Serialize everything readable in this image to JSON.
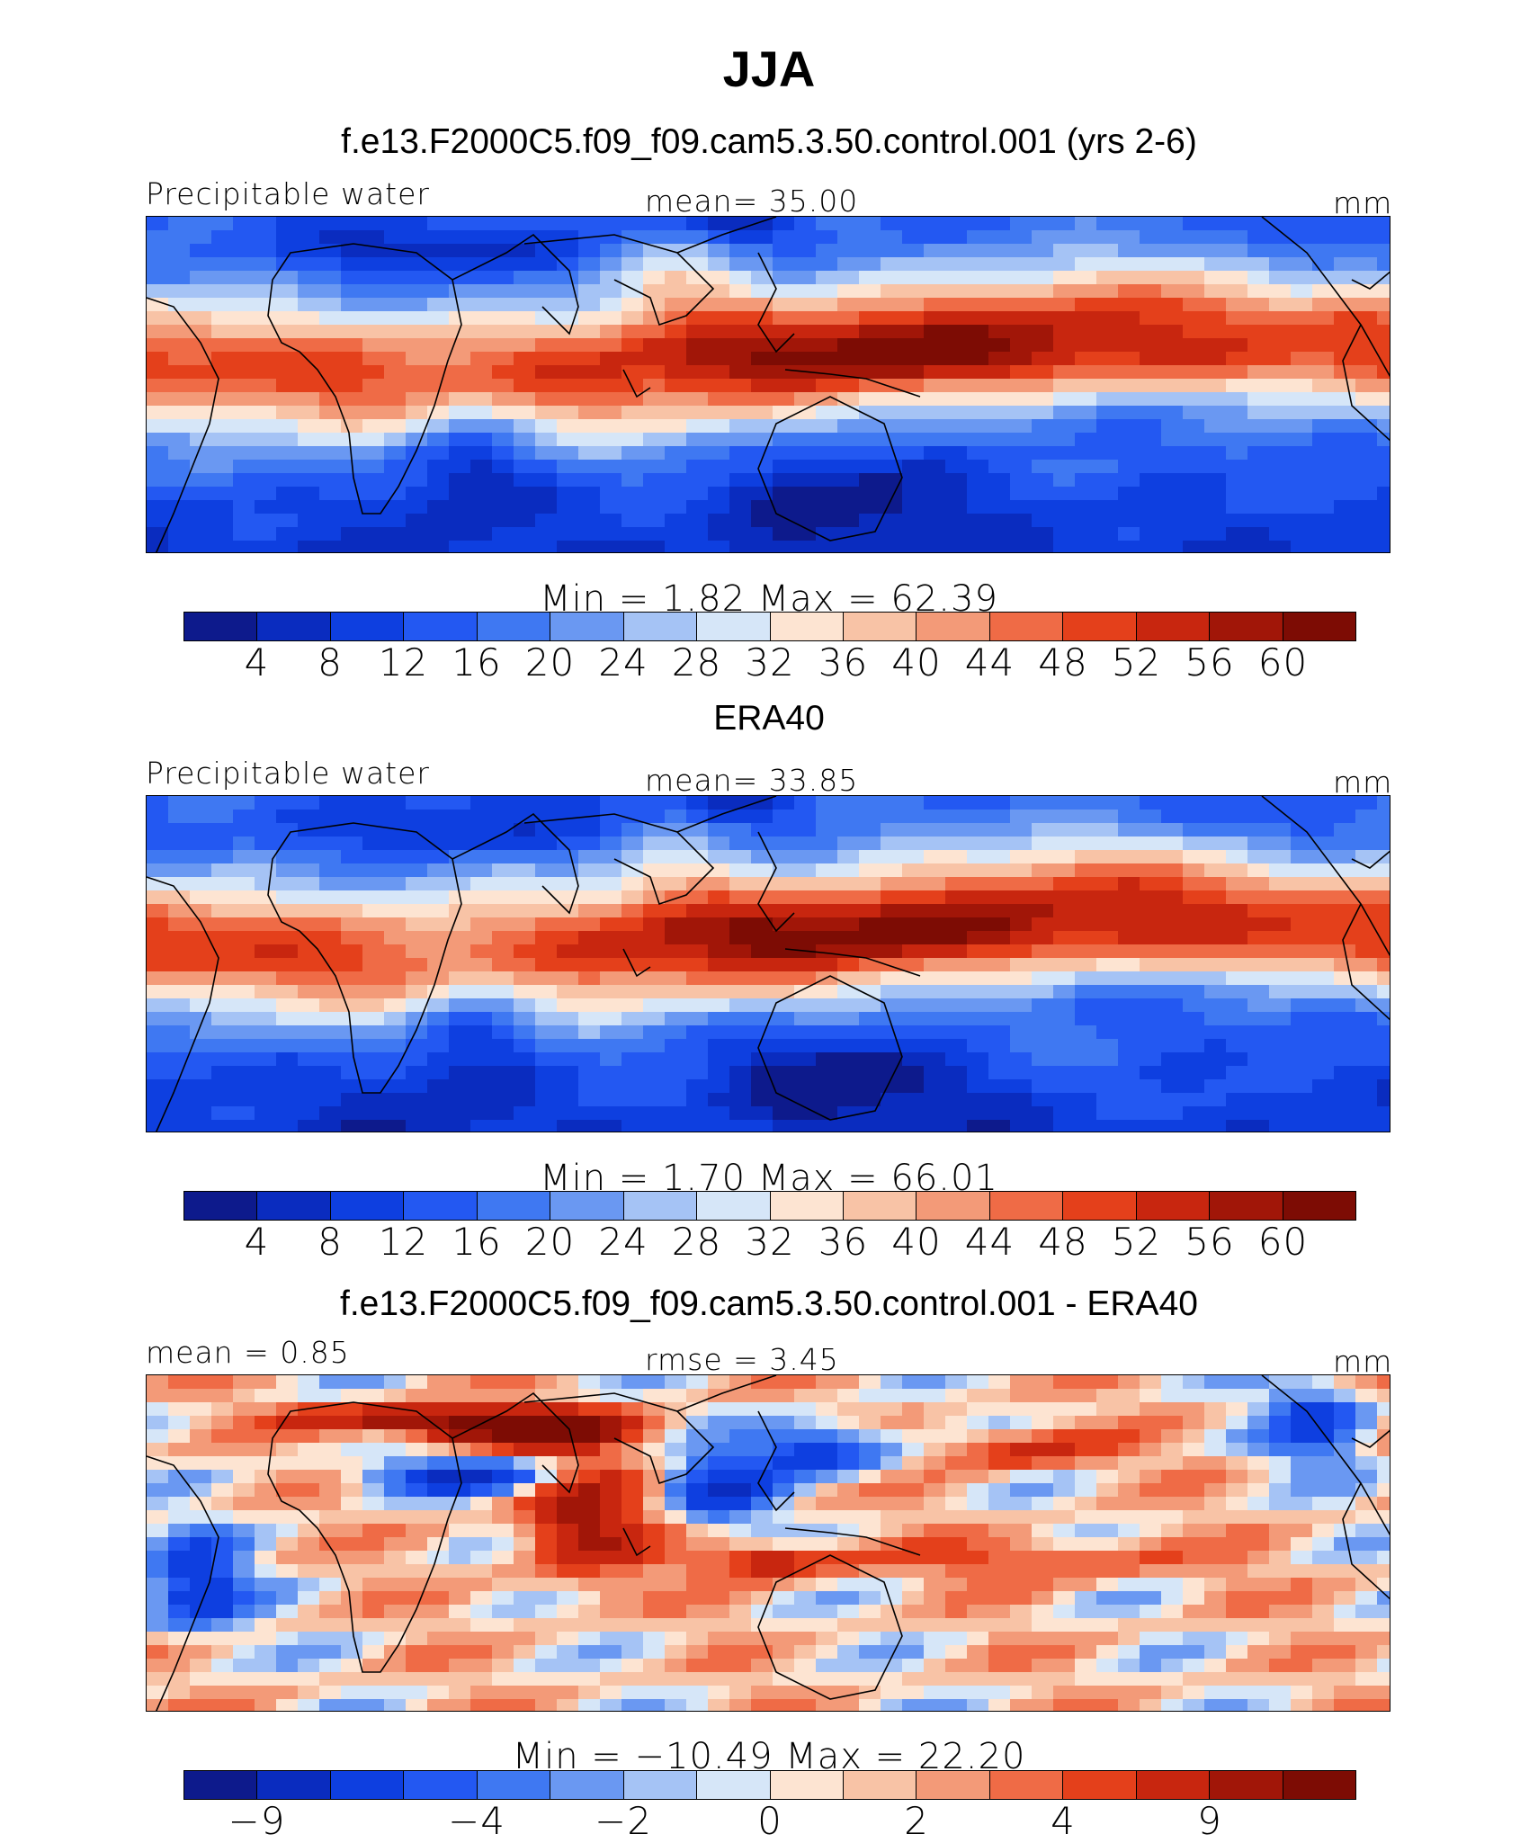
{
  "title": "JJA",
  "panels": [
    {
      "title": "f.e13.F2000C5.f09_f09.cam5.3.50.control.001 (yrs 2-6)",
      "left_label": "Precipitable water",
      "center_label": "mean=   35.00",
      "units": "mm",
      "minmax": "Min  =    1.82  Max  =   62.39",
      "ticks": [
        "4",
        "8",
        "12",
        "16",
        "20",
        "24",
        "28",
        "32",
        "36",
        "40",
        "44",
        "48",
        "52",
        "56",
        "60"
      ],
      "palette": "abs"
    },
    {
      "title": "ERA40",
      "left_label": "Precipitable water",
      "center_label": "mean=   33.85",
      "units": "mm",
      "minmax": "Min  =    1.70  Max  =   66.01",
      "ticks": [
        "4",
        "8",
        "12",
        "16",
        "20",
        "24",
        "28",
        "32",
        "36",
        "40",
        "44",
        "48",
        "52",
        "56",
        "60"
      ],
      "palette": "abs"
    },
    {
      "title": "f.e13.F2000C5.f09_f09.cam5.3.50.control.001 - ERA40",
      "left_label": "mean =    0.85",
      "center_label": "rmse =    3.45",
      "units": "mm",
      "minmax": "Min  = −10.49  Max  =   22.20",
      "ticks": [
        "−9",
        "−4",
        "−2",
        "0",
        "2",
        "4",
        "9"
      ],
      "palette": "diff"
    }
  ],
  "colors": {
    "abs": [
      "#0d1a8c",
      "#0a2cbf",
      "#0e3fe0",
      "#2358f2",
      "#3f78f2",
      "#6a98f2",
      "#a5c3f5",
      "#d6e6f8",
      "#fde4d2",
      "#f8c3a6",
      "#f39a78",
      "#ef6b46",
      "#e4401b",
      "#c8260f",
      "#a11608",
      "#7d0c04"
    ],
    "diff": [
      "#0d1a8c",
      "#0a2cbf",
      "#0e3fe0",
      "#2358f2",
      "#3f78f2",
      "#6a98f2",
      "#a5c3f5",
      "#d6e6f8",
      "#fde4d2",
      "#f8c3a6",
      "#f39a78",
      "#ef6b46",
      "#e4401b",
      "#c8260f",
      "#a11608",
      "#7d0c04"
    ]
  },
  "chart_data": [
    {
      "type": "heatmap",
      "title": "f.e13.F2000C5.f09_f09.cam5.3.50.control.001 (yrs 2-6)",
      "variable": "Precipitable water",
      "units": "mm",
      "mean": 35.0,
      "min": 1.82,
      "max": 62.39,
      "contour_levels": [
        4,
        8,
        12,
        16,
        20,
        24,
        28,
        32,
        36,
        40,
        44,
        48,
        52,
        56,
        60
      ]
    },
    {
      "type": "heatmap",
      "title": "ERA40",
      "variable": "Precipitable water",
      "units": "mm",
      "mean": 33.85,
      "min": 1.7,
      "max": 66.01,
      "contour_levels": [
        4,
        8,
        12,
        16,
        20,
        24,
        28,
        32,
        36,
        40,
        44,
        48,
        52,
        56,
        60
      ]
    },
    {
      "type": "heatmap",
      "title": "f.e13.F2000C5.f09_f09.cam5.3.50.control.001 - ERA40",
      "units": "mm",
      "mean": 0.85,
      "rmse": 3.45,
      "min": -10.49,
      "max": 22.2,
      "contour_levels_labeled": [
        -9,
        -4,
        -2,
        0,
        2,
        4,
        9
      ]
    }
  ]
}
